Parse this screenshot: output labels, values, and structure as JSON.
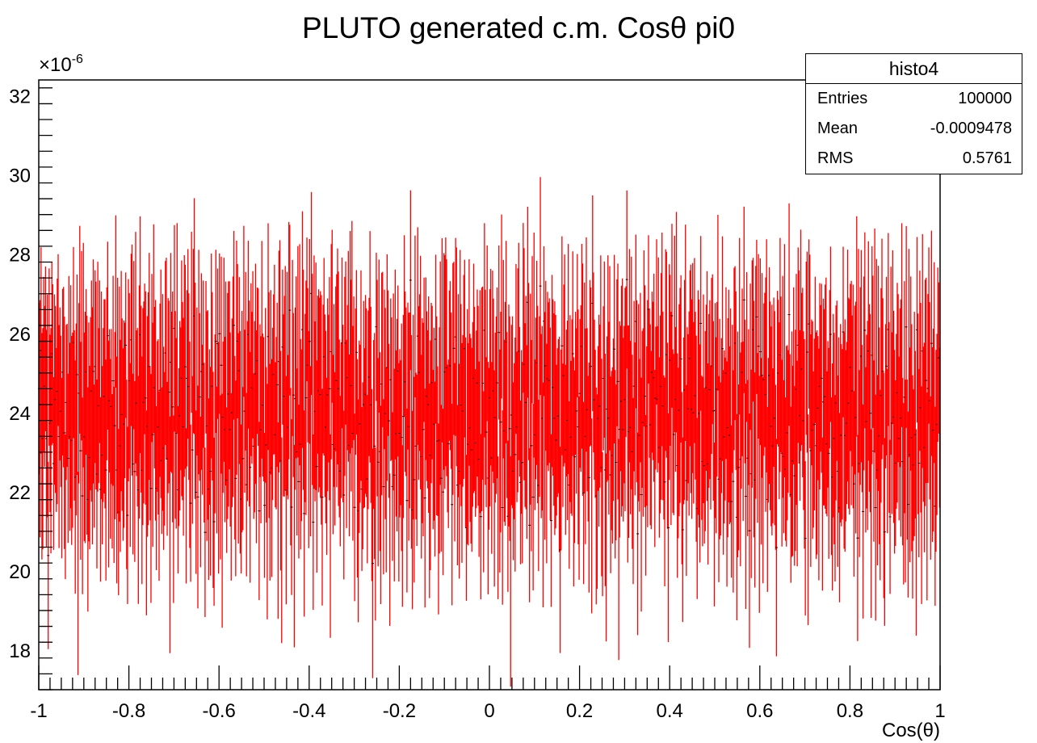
{
  "chart_data": {
    "type": "histogram",
    "title": "PLUTO generated c.m. Cosθ pi0",
    "xlabel": "Cos(θ)",
    "ylabel": "",
    "y_multiplier": "×10",
    "y_multiplier_exp": "-6",
    "xlim": [
      -1,
      1
    ],
    "ylim": [
      17.0,
      32.4
    ],
    "x_ticks": [
      "-1",
      "-0.8",
      "-0.6",
      "-0.4",
      "-0.2",
      "0",
      "0.2",
      "0.4",
      "0.6",
      "0.8",
      "1"
    ],
    "y_ticks": [
      "18",
      "20",
      "22",
      "24",
      "26",
      "28",
      "30",
      "32"
    ],
    "bins": 1000,
    "series": [
      {
        "values": [
          24.2,
          23.5,
          25.1,
          24.0,
          22.8,
          24.6,
          23.9,
          25.4,
          24.1,
          23.2,
          21.4,
          24.8,
          24.3,
          22.2,
          25.7,
          24.4,
          23.6,
          24.9,
          23.1,
          22.9,
          24.7,
          25.0,
          23.3,
          24.2,
          23.8,
          22.1,
          24.5,
          25.2,
          23.7,
          21.8,
          24.9,
          24.0,
          23.4,
          25.6,
          22.6,
          24.3,
          23.0,
          24.8,
          25.9,
          23.5,
          22.4,
          24.6,
          23.9,
          21.2,
          24.1,
          25.3,
          23.6,
          24.4,
          22.7,
          25.0,
          23.2,
          24.7,
          26.1,
          23.8,
          22.3,
          24.2,
          23.1,
          25.5,
          24.0,
          22.9,
          24.8,
          23.4,
          25.8,
          24.3,
          22.0,
          24.5,
          23.7,
          25.1,
          21.6,
          24.9,
          23.3,
          24.6,
          25.4,
          23.0,
          22.5,
          24.2,
          26.0,
          23.9,
          24.7,
          22.8,
          25.2,
          23.5,
          24.1,
          21.9,
          24.4,
          25.7,
          23.6,
          24.8,
          22.2,
          24.0,
          23.8,
          25.3,
          24.5,
          22.6,
          23.2,
          24.9,
          25.0,
          23.4,
          21.5,
          24.3,
          24.6,
          23.1,
          25.6,
          24.2,
          22.4,
          24.7,
          23.7,
          25.9,
          23.0,
          24.1,
          22.9,
          24.8,
          25.4,
          23.6,
          22.1,
          24.4,
          24.0,
          25.2,
          23.3,
          22.7
        ],
        "errors": 2.4
      }
    ],
    "stats": {
      "name": "histo4",
      "rows": [
        {
          "label": "Entries",
          "value": "100000"
        },
        {
          "label": "Mean",
          "value": "-0.0009478"
        },
        {
          "label": "RMS",
          "value": "0.5761"
        }
      ]
    },
    "colors": {
      "line": "#ff0000",
      "marker": "#000000",
      "axis": "#000000"
    }
  }
}
